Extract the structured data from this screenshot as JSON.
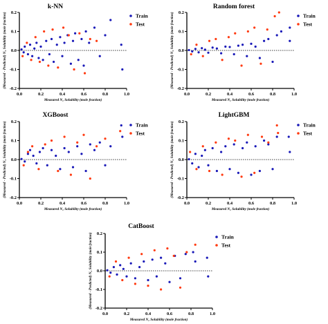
{
  "colors": {
    "train": "#1a1ab8",
    "test": "#ff3a10",
    "axis": "#000000",
    "zero_line": "#000000"
  },
  "chart_data": [
    {
      "type": "scatter",
      "panel": "knn",
      "title": "k-NN",
      "xlabel": "Measured N₂ Solubility (mole fraction)",
      "ylabel": "(Measured - Predicted) N₂ Solubility (mole fraction)",
      "xlim": [
        0.0,
        1.0
      ],
      "ylim": [
        -0.2,
        0.2
      ],
      "xticks": [
        "0.0",
        "0.2",
        "0.4",
        "0.6",
        "0.8",
        "1.0"
      ],
      "yticks": [
        "0.2",
        "0.1",
        "0.0",
        "-0.1",
        "-0.2"
      ],
      "series": [
        {
          "name": "Train",
          "color": "#1a1ab8",
          "x": [
            0.02,
            0.04,
            0.05,
            0.08,
            0.1,
            0.12,
            0.14,
            0.16,
            0.18,
            0.2,
            0.22,
            0.25,
            0.28,
            0.3,
            0.32,
            0.35,
            0.38,
            0.4,
            0.42,
            0.45,
            0.48,
            0.5,
            0.52,
            0.55,
            0.58,
            0.6,
            0.62,
            0.65,
            0.7,
            0.75,
            0.8,
            0.85,
            0.95,
            0.96
          ],
          "y": [
            0.005,
            -0.01,
            0.02,
            -0.02,
            0.03,
            -0.03,
            0.01,
            0.04,
            -0.04,
            0.02,
            -0.05,
            0.05,
            -0.02,
            0.06,
            -0.06,
            0.03,
            0.07,
            -0.03,
            0.04,
            0.08,
            -0.07,
            0.05,
            0.09,
            -0.05,
            0.06,
            -0.08,
            0.1,
            0.04,
            0.12,
            -0.03,
            0.08,
            0.16,
            0.03,
            -0.1
          ]
        },
        {
          "name": "Test",
          "color": "#ff3a10",
          "x": [
            0.03,
            0.07,
            0.11,
            0.15,
            0.19,
            0.23,
            0.27,
            0.31,
            0.36,
            0.41,
            0.46,
            0.51,
            0.56,
            0.61,
            0.66,
            0.72
          ],
          "y": [
            -0.03,
            0.04,
            -0.05,
            0.07,
            -0.06,
            0.1,
            -0.08,
            0.11,
            -0.09,
            0.12,
            0.08,
            -0.1,
            0.09,
            -0.12,
            0.06,
            0.05
          ]
        }
      ]
    },
    {
      "type": "scatter",
      "panel": "rf",
      "title": "Random forest",
      "xlabel": "Measured N₂ Solubility (mole fraction)",
      "ylabel": "(Measured - Predicted) N₂ Solubility (mole fraction)",
      "xlim": [
        0.0,
        1.0
      ],
      "ylim": [
        -0.2,
        0.2
      ],
      "xticks": [
        "0.0",
        "0.2",
        "0.4",
        "0.6",
        "0.8",
        "1.0"
      ],
      "yticks": [
        "0.2",
        "0.1",
        "0.0",
        "-0.1",
        "-0.2"
      ],
      "series": [
        {
          "name": "Train",
          "color": "#1a1ab8",
          "x": [
            0.02,
            0.05,
            0.08,
            0.11,
            0.14,
            0.17,
            0.2,
            0.24,
            0.28,
            0.32,
            0.36,
            0.4,
            0.44,
            0.48,
            0.52,
            0.56,
            0.6,
            0.64,
            0.68,
            0.72,
            0.76,
            0.8,
            0.84,
            0.88,
            0.96,
            0.96
          ],
          "y": [
            0.002,
            -0.005,
            0.008,
            -0.01,
            0.012,
            0.004,
            -0.012,
            0.015,
            0.01,
            -0.015,
            0.02,
            0.018,
            -0.02,
            0.025,
            0.03,
            -0.03,
            0.035,
            0.02,
            -0.04,
            0.05,
            0.06,
            -0.06,
            0.08,
            0.1,
            0.12,
            0.05
          ]
        },
        {
          "name": "Test",
          "color": "#ff3a10",
          "x": [
            0.04,
            0.09,
            0.15,
            0.21,
            0.27,
            0.33,
            0.39,
            0.45,
            0.51,
            0.57,
            0.63,
            0.69,
            0.75,
            0.82,
            0.86
          ],
          "y": [
            -0.02,
            0.03,
            -0.03,
            0.05,
            0.06,
            -0.05,
            0.07,
            0.09,
            -0.08,
            0.1,
            0.12,
            -0.07,
            0.11,
            0.18,
            0.2
          ]
        }
      ]
    },
    {
      "type": "scatter",
      "panel": "xgb",
      "title": "XGBoost",
      "xlabel": "Measured N₂ Solubility (mole fraction)",
      "ylabel": "(Measured - Predicted) N₂ Solubility (mole fraction)",
      "xlim": [
        0.0,
        1.0
      ],
      "ylim": [
        -0.2,
        0.2
      ],
      "xticks": [
        "0.0",
        "0.2",
        "0.4",
        "0.6",
        "0.8",
        "1.0"
      ],
      "yticks": [
        "0.2",
        "0.1",
        "0.0",
        "-0.1",
        "-0.2"
      ],
      "series": [
        {
          "name": "Train",
          "color": "#1a1ab8",
          "x": [
            0.02,
            0.05,
            0.08,
            0.1,
            0.13,
            0.16,
            0.19,
            0.22,
            0.26,
            0.3,
            0.34,
            0.38,
            0.42,
            0.46,
            0.5,
            0.54,
            0.58,
            0.62,
            0.66,
            0.7,
            0.75,
            0.8,
            0.85,
            0.95,
            0.96
          ],
          "y": [
            0.003,
            -0.01,
            0.03,
            0.05,
            0.02,
            -0.02,
            0.04,
            0.06,
            -0.03,
            0.05,
            0.02,
            -0.05,
            0.06,
            0.04,
            -0.04,
            0.07,
            0.03,
            -0.06,
            0.08,
            0.05,
            0.09,
            -0.03,
            0.07,
            0.18,
            0.12
          ]
        },
        {
          "name": "Test",
          "color": "#ff3a10",
          "x": [
            0.04,
            0.08,
            0.12,
            0.18,
            0.24,
            0.3,
            0.36,
            0.42,
            0.48,
            0.54,
            0.6,
            0.66,
            0.72,
            0.8,
            0.94
          ],
          "y": [
            -0.03,
            0.04,
            0.07,
            -0.05,
            0.08,
            0.1,
            -0.06,
            0.12,
            -0.08,
            0.09,
            0.13,
            -0.1,
            0.07,
            0.11,
            0.15
          ]
        }
      ]
    },
    {
      "type": "scatter",
      "panel": "lgbm",
      "title": "LightGBM",
      "xlabel": "Measured N₂ Solubility (mole fraction)",
      "ylabel": "(Measured - Predicted) N₂ Solubility (mole fraction)",
      "xlim": [
        0.0,
        1.0
      ],
      "ylim": [
        -0.2,
        0.2
      ],
      "xticks": [
        "0.0",
        "0.2",
        "0.4",
        "0.6",
        "0.8",
        "1.0"
      ],
      "yticks": [
        "0.2",
        "0.1",
        "0.0",
        "-0.1",
        "-0.2"
      ],
      "series": [
        {
          "name": "Train",
          "color": "#1a1ab8",
          "x": [
            0.02,
            0.05,
            0.08,
            0.11,
            0.14,
            0.17,
            0.2,
            0.24,
            0.28,
            0.32,
            0.36,
            0.4,
            0.44,
            0.48,
            0.52,
            0.56,
            0.6,
            0.64,
            0.68,
            0.72,
            0.76,
            0.8,
            0.84,
            0.95,
            0.96
          ],
          "y": [
            0.002,
            -0.02,
            0.03,
            -0.04,
            0.02,
            0.05,
            -0.03,
            0.06,
            -0.06,
            0.04,
            0.07,
            -0.05,
            0.08,
            -0.07,
            0.06,
            0.09,
            -0.08,
            0.07,
            -0.06,
            0.1,
            0.08,
            -0.05,
            0.12,
            0.12,
            0.04
          ]
        },
        {
          "name": "Test",
          "color": "#ff3a10",
          "x": [
            0.03,
            0.09,
            0.15,
            0.21,
            0.27,
            0.33,
            0.39,
            0.45,
            0.51,
            0.57,
            0.63,
            0.7,
            0.76,
            0.84,
            0.85
          ],
          "y": [
            0.04,
            -0.05,
            0.07,
            -0.06,
            0.09,
            -0.08,
            0.11,
            0.1,
            -0.09,
            0.13,
            -0.07,
            0.12,
            0.09,
            0.18,
            0.14
          ]
        }
      ]
    },
    {
      "type": "scatter",
      "panel": "cat",
      "title": "CatBoost",
      "xlabel": "Measured N₂ Solubility (mole fraction)",
      "ylabel": "(Measured - Predicted) N₂ Solubility (mole fraction)",
      "xlim": [
        0.0,
        1.0
      ],
      "ylim": [
        -0.2,
        0.2
      ],
      "xticks": [
        "0.0",
        "0.2",
        "0.4",
        "0.6",
        "0.8",
        "1.0"
      ],
      "yticks": [
        "0.2",
        "0.1",
        "0.0",
        "-0.1",
        "-0.2"
      ],
      "series": [
        {
          "name": "Train",
          "color": "#1a1ab8",
          "x": [
            0.02,
            0.05,
            0.08,
            0.11,
            0.14,
            0.17,
            0.2,
            0.24,
            0.28,
            0.32,
            0.36,
            0.4,
            0.44,
            0.48,
            0.52,
            0.56,
            0.6,
            0.65,
            0.7,
            0.75,
            0.82,
            0.84,
            0.95,
            0.96
          ],
          "y": [
            0.003,
            -0.01,
            0.02,
            -0.02,
            0.03,
            0.01,
            -0.03,
            0.04,
            -0.04,
            0.02,
            0.05,
            -0.05,
            0.06,
            -0.03,
            0.07,
            0.04,
            -0.06,
            0.08,
            -0.04,
            0.09,
            0.1,
            0.05,
            0.07,
            -0.03
          ]
        },
        {
          "name": "Test",
          "color": "#ff3a10",
          "x": [
            0.04,
            0.1,
            0.16,
            0.22,
            0.28,
            0.34,
            0.4,
            0.46,
            0.52,
            0.58,
            0.64,
            0.7,
            0.76,
            0.84
          ],
          "y": [
            -0.03,
            0.05,
            -0.05,
            0.07,
            -0.07,
            0.09,
            -0.08,
            0.11,
            -0.1,
            0.12,
            0.08,
            -0.09,
            0.1,
            0.14
          ]
        }
      ]
    }
  ]
}
